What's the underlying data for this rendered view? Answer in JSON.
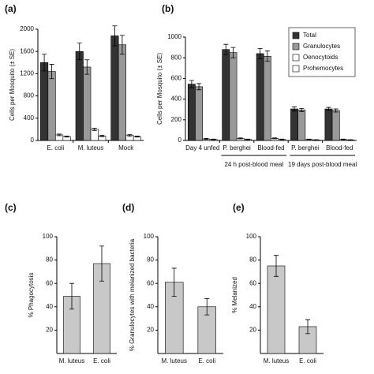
{
  "chart_data": [
    {
      "type": "bar",
      "panel": "(a)",
      "ylabel": "Cells per Mosquito (± SE)",
      "categories": [
        "E. coli",
        "M. luteus",
        "Mock"
      ],
      "series": [
        {
          "color": "#333333",
          "values": [
            1400,
            1600,
            1880
          ],
          "errors": [
            150,
            150,
            180
          ]
        },
        {
          "color": "#999999",
          "values": [
            1240,
            1320,
            1720
          ],
          "errors": [
            130,
            130,
            170
          ]
        },
        {
          "color": "#ffffff",
          "values": [
            100,
            200,
            90
          ],
          "errors": [
            15,
            20,
            15
          ]
        },
        {
          "color": "#ffffff",
          "values": [
            70,
            80,
            70
          ],
          "errors": [
            10,
            10,
            10
          ]
        }
      ],
      "ylim": [
        0,
        2000
      ],
      "yticks": [
        0,
        400,
        800,
        1200,
        1600,
        2000
      ]
    },
    {
      "type": "bar",
      "panel": "(b)",
      "ylabel": "Cells per Mosquito (± SE)",
      "categories": [
        "Day 4 unfed",
        "P. berghei",
        "Blood-fed",
        "P. berghei",
        "Blood-fed"
      ],
      "annotations": [
        "24 h post-blood meal",
        "19 days post-blood meal"
      ],
      "legend": "upper right",
      "series": [
        {
          "name": "Total",
          "color": "#333333",
          "values": [
            545,
            880,
            840,
            305,
            305
          ],
          "errors": [
            35,
            50,
            50,
            20,
            15
          ]
        },
        {
          "name": "Granulocytes",
          "color": "#999999",
          "values": [
            520,
            850,
            815,
            295,
            290
          ],
          "errors": [
            30,
            50,
            50,
            15,
            15
          ]
        },
        {
          "name": "Oenocytoids",
          "color": "#ffffff",
          "values": [
            15,
            20,
            20,
            10,
            10
          ],
          "errors": [
            5,
            5,
            5,
            3,
            3
          ]
        },
        {
          "name": "Prohemocytes",
          "color": "#ffffff",
          "values": [
            10,
            10,
            10,
            5,
            5
          ],
          "errors": [
            3,
            3,
            3,
            2,
            2
          ]
        }
      ],
      "ylim": [
        0,
        1000
      ],
      "yticks": [
        0,
        200,
        400,
        600,
        800,
        1000
      ]
    },
    {
      "type": "bar",
      "panel": "(c)",
      "ylabel": "% Phagocytosis",
      "categories": [
        "M. luteus",
        "E. coli"
      ],
      "series": [
        {
          "color": "#c8c8c8",
          "values": [
            49,
            77
          ],
          "errors": [
            11,
            15
          ]
        }
      ],
      "ylim": [
        0,
        100
      ],
      "yticks": [
        20,
        40,
        60,
        80,
        100
      ]
    },
    {
      "type": "bar",
      "panel": "(d)",
      "ylabel": "% Granulocytes with melanized bacteria",
      "categories": [
        "M. luteus",
        "E. coli"
      ],
      "series": [
        {
          "color": "#c8c8c8",
          "values": [
            61,
            40
          ],
          "errors": [
            12,
            7
          ]
        }
      ],
      "ylim": [
        0,
        100
      ],
      "yticks": [
        20,
        40,
        60,
        80,
        100
      ]
    },
    {
      "type": "bar",
      "panel": "(e)",
      "ylabel": "% Melanized",
      "categories": [
        "M. luteus",
        "E. coli"
      ],
      "series": [
        {
          "color": "#c8c8c8",
          "values": [
            75,
            23
          ],
          "errors": [
            9,
            6
          ]
        }
      ],
      "ylim": [
        0,
        100
      ],
      "yticks": [
        20,
        40,
        60,
        80,
        100
      ]
    }
  ]
}
